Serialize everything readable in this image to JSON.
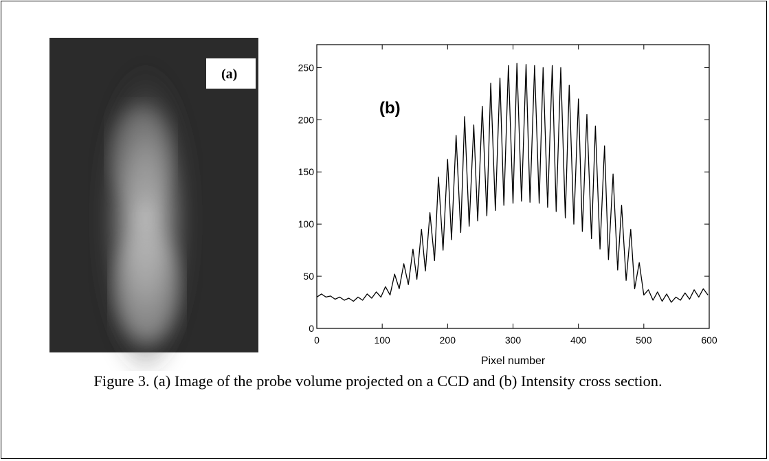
{
  "panel_a": {
    "label": "(a)"
  },
  "caption": "Figure 3.  (a) Image of the probe volume projected on a CCD and  (b) Intensity cross section.",
  "chart_data": {
    "type": "line",
    "annotation": "(b)",
    "x_label": "Pixel number",
    "color": "#000000",
    "xlim": [
      0,
      600
    ],
    "ylim": [
      0,
      272
    ],
    "xticks": [
      0,
      100,
      200,
      300,
      400,
      500,
      600
    ],
    "yticks": [
      0,
      50,
      100,
      150,
      200,
      250
    ],
    "x": [
      0,
      7,
      14,
      21,
      28,
      35,
      42,
      49,
      56,
      63,
      70,
      77,
      84,
      91,
      98,
      105,
      112,
      119,
      126,
      133,
      140,
      147,
      153,
      160,
      166,
      173,
      180,
      186,
      193,
      200,
      206,
      213,
      220,
      226,
      233,
      240,
      246,
      253,
      260,
      266,
      273,
      280,
      286,
      293,
      300,
      306,
      313,
      320,
      326,
      333,
      340,
      346,
      353,
      360,
      366,
      373,
      380,
      386,
      393,
      400,
      406,
      413,
      420,
      426,
      433,
      440,
      446,
      453,
      460,
      466,
      473,
      480,
      486,
      493,
      500,
      507,
      514,
      521,
      528,
      535,
      542,
      549,
      556,
      563,
      570,
      577,
      584,
      591,
      598
    ],
    "values": [
      30,
      33,
      30,
      31,
      28,
      30,
      27,
      29,
      26,
      30,
      27,
      33,
      29,
      35,
      30,
      40,
      32,
      52,
      38,
      62,
      42,
      76,
      47,
      95,
      55,
      111,
      65,
      145,
      75,
      162,
      85,
      185,
      92,
      203,
      98,
      195,
      103,
      213,
      108,
      235,
      113,
      240,
      118,
      252,
      120,
      254,
      122,
      253,
      121,
      252,
      120,
      250,
      116,
      252,
      112,
      250,
      106,
      233,
      100,
      220,
      93,
      205,
      86,
      194,
      76,
      175,
      66,
      148,
      56,
      118,
      46,
      95,
      38,
      63,
      32,
      37,
      27,
      35,
      26,
      33,
      25,
      30,
      27,
      34,
      28,
      37,
      30,
      38,
      32
    ]
  }
}
